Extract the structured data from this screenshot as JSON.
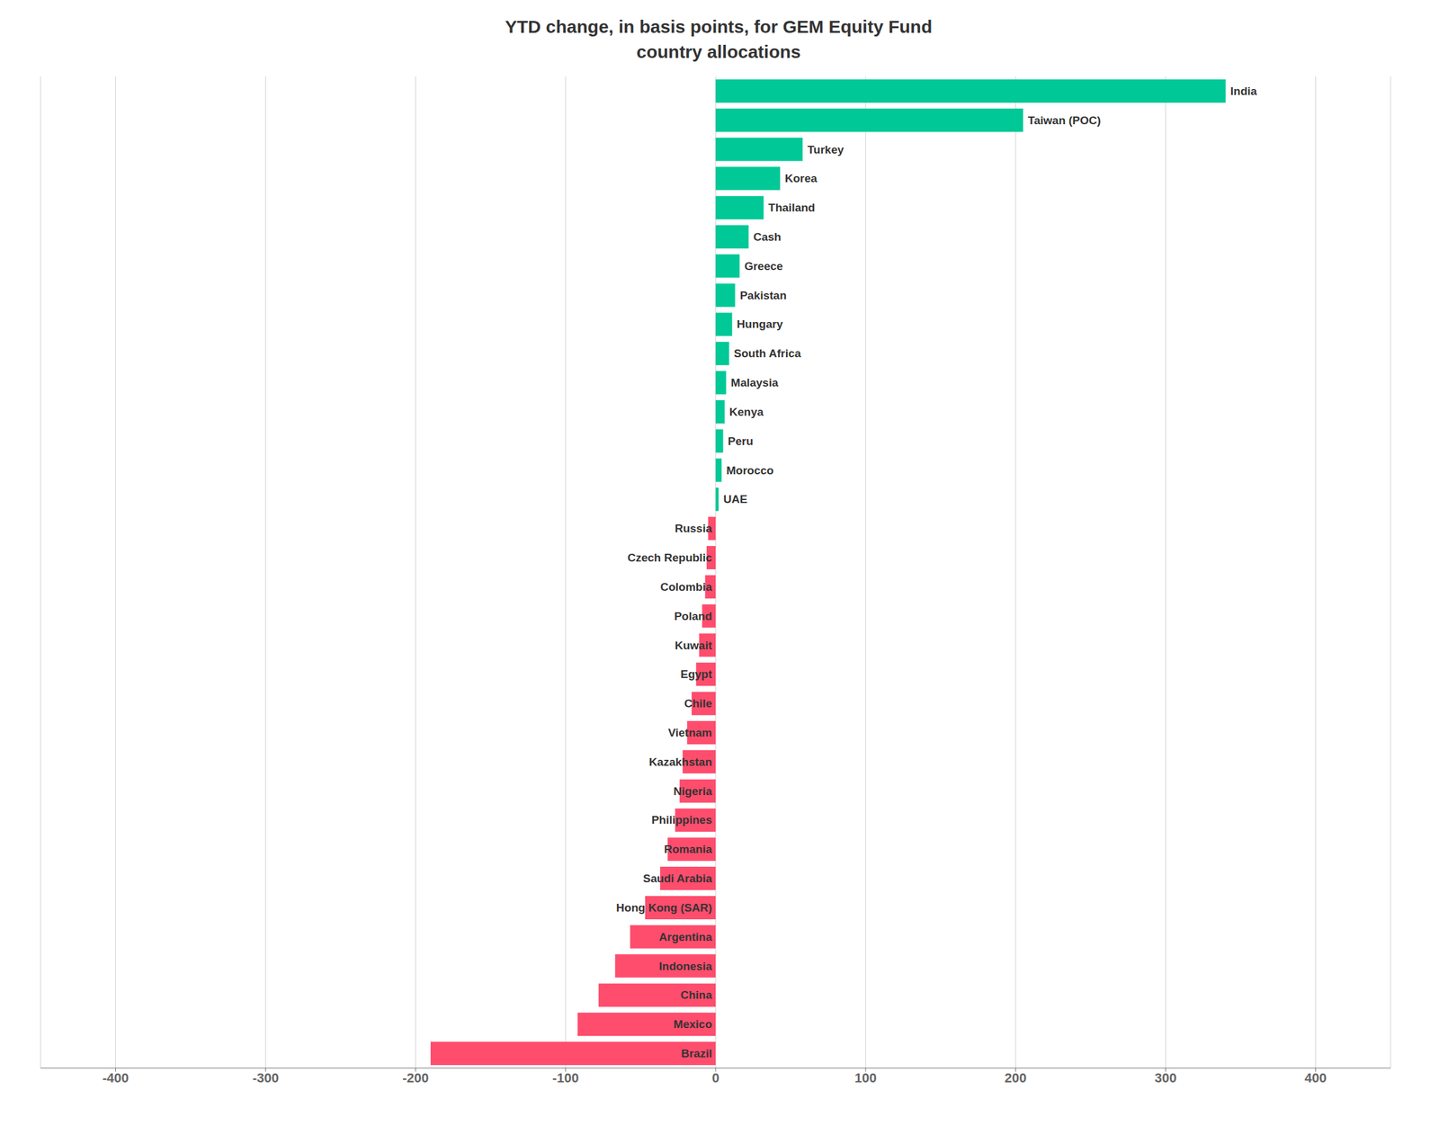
{
  "chart_data": {
    "type": "bar",
    "title": "YTD change, in basis points, for GEM Equity Fund\ncountry allocations",
    "orientation": "horizontal",
    "categories": [
      "India",
      "Taiwan (POC)",
      "Turkey",
      "Korea",
      "Thailand",
      "Cash",
      "Greece",
      "Pakistan",
      "Hungary",
      "South Africa",
      "Malaysia",
      "Kenya",
      "Peru",
      "Morocco",
      "UAE",
      "Russia",
      "Czech Republic",
      "Colombia",
      "Poland",
      "Kuwait",
      "Egypt",
      "Chile",
      "Vietnam",
      "Kazakhstan",
      "Nigeria",
      "Philippines",
      "Romania",
      "Saudi Arabia",
      "Hong Kong (SAR)",
      "Argentina",
      "Indonesia",
      "China",
      "Mexico",
      "Brazil"
    ],
    "values": [
      340,
      205,
      58,
      43,
      32,
      22,
      16,
      13,
      11,
      9,
      7,
      6,
      5,
      4,
      2,
      -5,
      -6,
      -7,
      -9,
      -11,
      -13,
      -16,
      -19,
      -22,
      -24,
      -27,
      -32,
      -37,
      -47,
      -57,
      -67,
      -78,
      -92,
      -190
    ],
    "colors": [
      "#00c896",
      "#00c896",
      "#00c896",
      "#00c896",
      "#00c896",
      "#00c896",
      "#00c896",
      "#00c896",
      "#00c896",
      "#00c896",
      "#00c896",
      "#00c896",
      "#00c896",
      "#00c896",
      "#00c896",
      "#ff4d6d",
      "#ff4d6d",
      "#ff4d6d",
      "#ff4d6d",
      "#ff4d6d",
      "#ff4d6d",
      "#ff4d6d",
      "#ff4d6d",
      "#ff4d6d",
      "#ff4d6d",
      "#ff4d6d",
      "#ff4d6d",
      "#ff4d6d",
      "#ff4d6d",
      "#ff4d6d",
      "#ff4d6d",
      "#ff4d6d",
      "#ff4d6d",
      "#ff4d6d"
    ],
    "xlim": [
      -450,
      450
    ],
    "xticks": [
      -400,
      -300,
      -200,
      -100,
      0,
      100,
      200,
      300,
      400
    ],
    "grid": true,
    "tick_labels": "x"
  }
}
